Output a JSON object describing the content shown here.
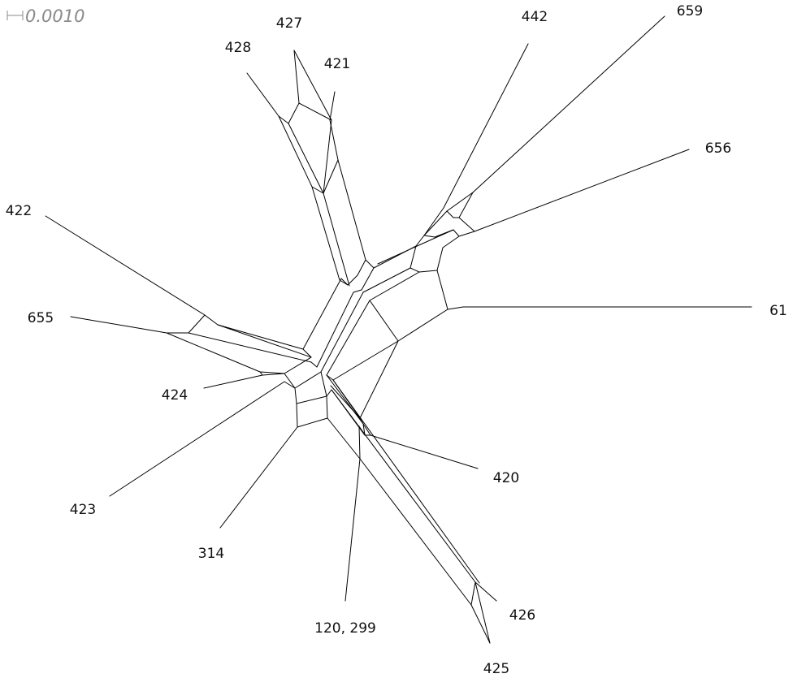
{
  "scale_label": "0.0010",
  "taxa": [
    "427",
    "428",
    "421",
    "442",
    "659",
    "656",
    "422",
    "655",
    "61",
    "424",
    "420",
    "423",
    "314",
    "120, 299",
    "426",
    "425"
  ]
}
